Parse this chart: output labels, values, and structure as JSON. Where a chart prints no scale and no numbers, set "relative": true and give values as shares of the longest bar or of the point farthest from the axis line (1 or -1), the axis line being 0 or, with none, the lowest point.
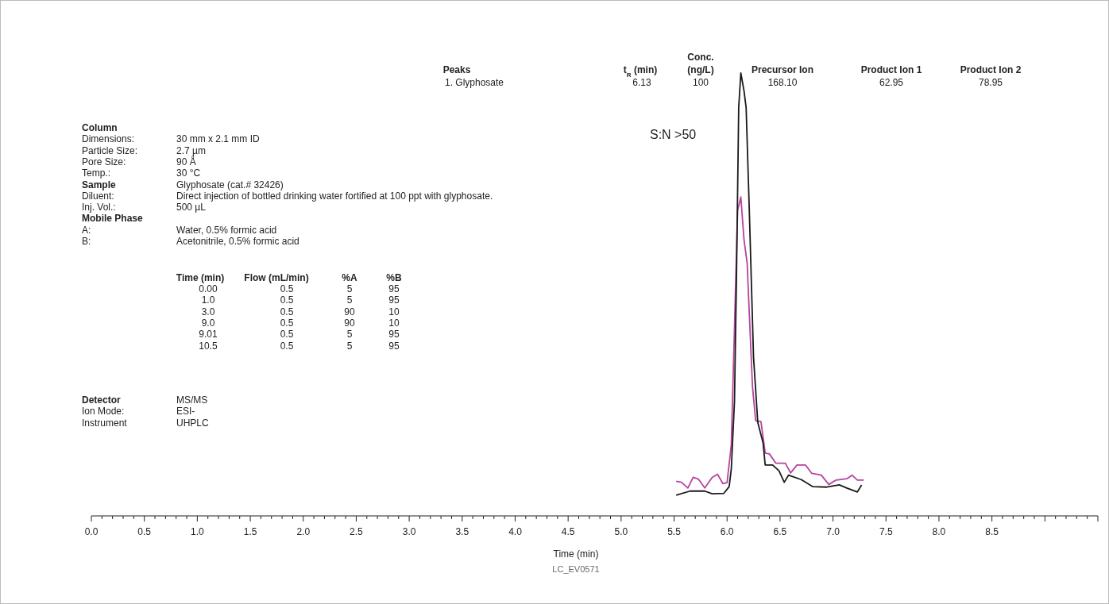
{
  "chart_data": {
    "type": "line",
    "relative": true,
    "xlabel": "Time (min)",
    "xlim": [
      0,
      9.5
    ],
    "xticks": [
      {
        "value": 0,
        "label": "0.0"
      },
      {
        "value": 0.1,
        "label": null
      },
      {
        "value": 0.2,
        "label": null
      },
      {
        "value": 0.3,
        "label": null
      },
      {
        "value": 0.4,
        "label": null
      },
      {
        "value": 0.5,
        "label": "0.5"
      },
      {
        "value": 0.6,
        "label": null
      },
      {
        "value": 0.7,
        "label": null
      },
      {
        "value": 0.8,
        "label": null
      },
      {
        "value": 0.9,
        "label": null
      },
      {
        "value": 1,
        "label": "1.0"
      },
      {
        "value": 1.1,
        "label": null
      },
      {
        "value": 1.2,
        "label": null
      },
      {
        "value": 1.3,
        "label": null
      },
      {
        "value": 1.4,
        "label": null
      },
      {
        "value": 1.5,
        "label": "1.5"
      },
      {
        "value": 1.6,
        "label": null
      },
      {
        "value": 1.7,
        "label": null
      },
      {
        "value": 1.8,
        "label": null
      },
      {
        "value": 1.9,
        "label": null
      },
      {
        "value": 2,
        "label": "2.0"
      },
      {
        "value": 2.1,
        "label": null
      },
      {
        "value": 2.2,
        "label": null
      },
      {
        "value": 2.3,
        "label": null
      },
      {
        "value": 2.4,
        "label": null
      },
      {
        "value": 2.5,
        "label": "2.5"
      },
      {
        "value": 2.6,
        "label": null
      },
      {
        "value": 2.7,
        "label": null
      },
      {
        "value": 2.8,
        "label": null
      },
      {
        "value": 2.9,
        "label": null
      },
      {
        "value": 3,
        "label": "3.0"
      },
      {
        "value": 3.1,
        "label": null
      },
      {
        "value": 3.2,
        "label": null
      },
      {
        "value": 3.3,
        "label": null
      },
      {
        "value": 3.4,
        "label": null
      },
      {
        "value": 3.5,
        "label": "3.5"
      },
      {
        "value": 3.6,
        "label": null
      },
      {
        "value": 3.7,
        "label": null
      },
      {
        "value": 3.8,
        "label": null
      },
      {
        "value": 3.9,
        "label": null
      },
      {
        "value": 4,
        "label": "4.0"
      },
      {
        "value": 4.1,
        "label": null
      },
      {
        "value": 4.2,
        "label": null
      },
      {
        "value": 4.3,
        "label": null
      },
      {
        "value": 4.4,
        "label": null
      },
      {
        "value": 4.5,
        "label": "4.5"
      },
      {
        "value": 4.6,
        "label": null
      },
      {
        "value": 4.7,
        "label": null
      },
      {
        "value": 4.8,
        "label": null
      },
      {
        "value": 4.9,
        "label": null
      },
      {
        "value": 5,
        "label": "5.0"
      },
      {
        "value": 5.1,
        "label": null
      },
      {
        "value": 5.2,
        "label": null
      },
      {
        "value": 5.3,
        "label": null
      },
      {
        "value": 5.4,
        "label": null
      },
      {
        "value": 5.5,
        "label": "5.5"
      },
      {
        "value": 5.6,
        "label": null
      },
      {
        "value": 5.7,
        "label": null
      },
      {
        "value": 5.8,
        "label": null
      },
      {
        "value": 5.9,
        "label": null
      },
      {
        "value": 6,
        "label": "6.0"
      },
      {
        "value": 6.1,
        "label": null
      },
      {
        "value": 6.2,
        "label": null
      },
      {
        "value": 6.3,
        "label": null
      },
      {
        "value": 6.4,
        "label": null
      },
      {
        "value": 6.5,
        "label": "6.5"
      },
      {
        "value": 6.6,
        "label": null
      },
      {
        "value": 6.7,
        "label": null
      },
      {
        "value": 6.8,
        "label": null
      },
      {
        "value": 6.9,
        "label": null
      },
      {
        "value": 7,
        "label": "7.0"
      },
      {
        "value": 7.1,
        "label": null
      },
      {
        "value": 7.2,
        "label": null
      },
      {
        "value": 7.3,
        "label": null
      },
      {
        "value": 7.4,
        "label": null
      },
      {
        "value": 7.5,
        "label": "7.5"
      },
      {
        "value": 7.6,
        "label": null
      },
      {
        "value": 7.7,
        "label": null
      },
      {
        "value": 7.8,
        "label": null
      },
      {
        "value": 7.9,
        "label": null
      },
      {
        "value": 8,
        "label": "8.0"
      },
      {
        "value": 8.1,
        "label": null
      },
      {
        "value": 8.2,
        "label": null
      },
      {
        "value": 8.3,
        "label": null
      },
      {
        "value": 8.4,
        "label": null
      },
      {
        "value": 8.5,
        "label": "8.5"
      },
      {
        "value": 8.6,
        "label": null
      },
      {
        "value": 8.7,
        "label": null
      },
      {
        "value": 8.8,
        "label": null
      },
      {
        "value": 8.9,
        "label": null
      },
      {
        "value": 9,
        "label": null
      },
      {
        "value": 9.1,
        "label": null
      },
      {
        "value": 9.2,
        "label": null
      },
      {
        "value": 9.3,
        "label": null
      },
      {
        "value": 9.4,
        "label": null
      },
      {
        "value": 9.5,
        "label": null
      }
    ],
    "series": [
      {
        "color": "#b5439f",
        "x": [
          5.52,
          5.57,
          5.63,
          5.68,
          5.73,
          5.79,
          5.86,
          5.91,
          5.96,
          6.0,
          6.04,
          6.07,
          6.1,
          6.13,
          6.16,
          6.19,
          6.21,
          6.24,
          6.27,
          6.32,
          6.36,
          6.4,
          6.46,
          6.55,
          6.6,
          6.66,
          6.74,
          6.8,
          6.89,
          6.96,
          7.03,
          7.13,
          7.18,
          7.23,
          7.29
        ],
        "values": [
          0.078,
          0.076,
          0.063,
          0.087,
          0.083,
          0.063,
          0.087,
          0.094,
          0.073,
          0.075,
          0.16,
          0.425,
          0.69,
          0.72,
          0.624,
          0.57,
          0.457,
          0.292,
          0.215,
          0.213,
          0.142,
          0.14,
          0.119,
          0.119,
          0.097,
          0.115,
          0.115,
          0.096,
          0.092,
          0.071,
          0.081,
          0.084,
          0.092,
          0.081,
          0.081
        ]
      },
      {
        "color": "#1a1a1a",
        "x": [
          5.52,
          5.65,
          5.79,
          5.86,
          5.97,
          6.02,
          6.04,
          6.07,
          6.09,
          6.11,
          6.13,
          6.16,
          6.18,
          6.21,
          6.25,
          6.29,
          6.34,
          6.36,
          6.43,
          6.49,
          6.54,
          6.58,
          6.7,
          6.81,
          6.94,
          7.06,
          7.13,
          7.23,
          7.27
        ],
        "values": [
          0.047,
          0.056,
          0.056,
          0.05,
          0.051,
          0.066,
          0.106,
          0.258,
          0.557,
          0.922,
          1,
          0.96,
          0.922,
          0.69,
          0.358,
          0.211,
          0.165,
          0.115,
          0.115,
          0.102,
          0.076,
          0.092,
          0.082,
          0.066,
          0.065,
          0.07,
          0.063,
          0.054,
          0.07
        ]
      }
    ],
    "annotations": [
      "Peaks",
      "1. Glyphosate",
      "t$_{R}$ (min)",
      "6.13",
      "Conc.",
      "(ng/L)",
      "100",
      "Precursor Ion",
      "168.10",
      "Product Ion 1",
      "62.95",
      "Product Ion 2",
      "78.95",
      "S:N >50",
      "Column",
      "Dimensions:",
      "30 mm x 2.1 mm ID",
      "Particle Size:",
      "2.7 µm",
      "Pore Size:",
      "90 Å",
      "Temp.:",
      "30 °C",
      "Sample",
      "Glyphosate (cat.# 32426)",
      "Diluent:",
      "Direct injection of bottled drinking water fortified at 100 ppt with glyphosate.",
      "Inj. Vol.:",
      "500 µL",
      "Mobile Phase",
      "A:",
      "Water, 0.5% formic acid",
      "B:",
      "Acetonitrile, 0.5% formic acid",
      "Time (min)",
      "Flow (mL/min)",
      "%A",
      "%B",
      "0.00",
      "0.5",
      "5",
      "95",
      "1.0",
      "0.5",
      "5",
      "95",
      "3.0",
      "0.5",
      "90",
      "10",
      "9.0",
      "0.5",
      "90",
      "10",
      "9.01",
      "0.5",
      "5",
      "95",
      "10.5",
      "0.5",
      "5",
      "95",
      "Detector",
      "MS/MS",
      "Ion Mode:",
      "ESI-",
      "Instrument",
      "UHPLC",
      "LC_EV0571"
    ]
  }
}
